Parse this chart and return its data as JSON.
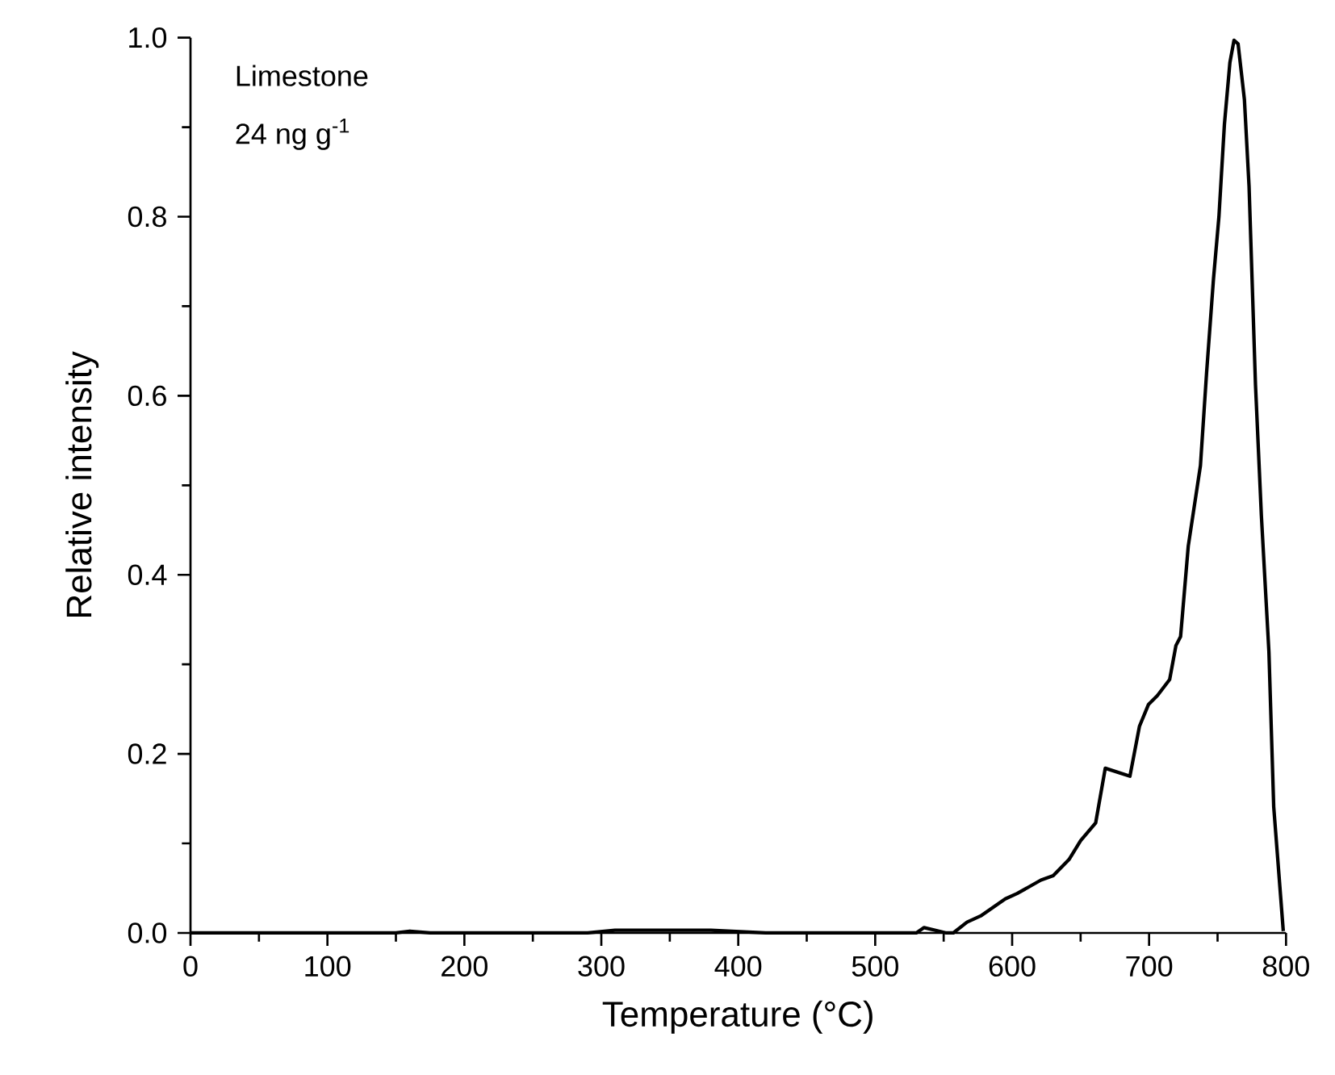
{
  "chart_data": {
    "type": "line",
    "xlabel": "Temperature (°C)",
    "ylabel": "Relative intensity",
    "annotations": [
      "Limestone",
      "24 ng g$^{-1}$"
    ],
    "xlim": [
      0,
      800
    ],
    "ylim": [
      0,
      1.0
    ],
    "xticks": [
      0,
      100,
      200,
      300,
      400,
      500,
      600,
      700,
      800
    ],
    "yticks": [
      {
        "value": 0,
        "label": "0.0"
      },
      {
        "value": 0.2,
        "label": "0.2"
      },
      {
        "value": 0.4,
        "label": "0.4"
      },
      {
        "value": 0.6,
        "label": "0.6"
      },
      {
        "value": 0.8,
        "label": "0.8"
      },
      {
        "value": 1.0,
        "label": "1.0"
      }
    ],
    "marker": "none",
    "line_style": "solid",
    "series": [
      {
        "color": "#000000",
        "x": [
          0,
          150,
          160,
          175,
          290,
          310,
          380,
          420,
          530,
          535.7,
          552,
          557,
          567,
          577,
          595,
          603.6,
          621,
          630,
          641.5,
          650,
          661,
          668,
          686,
          693,
          699.5,
          706,
          715,
          719.6,
          723,
          728.6,
          737.5,
          742,
          747,
          751,
          755,
          759,
          762,
          765,
          769.6,
          773,
          777.7,
          782,
          787.5,
          791,
          798
        ],
        "values": [
          0,
          0,
          0.002,
          0,
          0,
          0.003,
          0.003,
          0,
          0,
          0.006,
          0,
          0,
          0.012,
          0.019,
          0.038,
          0.044,
          0.059,
          0.064,
          0.082,
          0.103,
          0.123,
          0.184,
          0.175,
          0.231,
          0.255,
          0.265,
          0.283,
          0.321,
          0.331,
          0.432,
          0.522,
          0.626,
          0.73,
          0.8,
          0.903,
          0.972,
          0.997,
          0.993,
          0.931,
          0.834,
          0.612,
          0.466,
          0.314,
          0.141,
          0.002
        ]
      }
    ]
  }
}
